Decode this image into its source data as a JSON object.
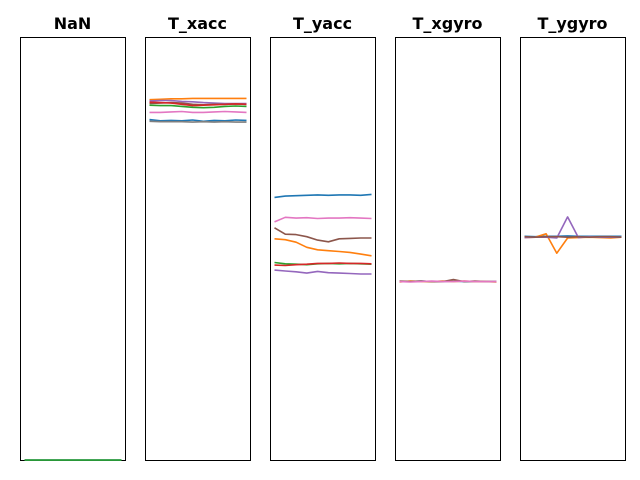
{
  "chart_data": {
    "type": "line",
    "subplots": [
      {
        "title": "NaN",
        "ylim": [
          0,
          100
        ],
        "series": [
          {
            "color": "#1f77b4",
            "values": [
              0.1,
              0.1,
              0.1,
              0.1,
              0.1,
              0.1,
              0.1,
              0.1,
              0.1,
              0.1
            ]
          },
          {
            "color": "#2ca02c",
            "values": [
              0.1,
              0.1,
              0.1,
              0.1,
              0.1,
              0.1,
              0.1,
              0.1,
              0.1,
              0.1
            ]
          }
        ]
      },
      {
        "title": "T_xacc",
        "ylim": [
          0,
          100
        ],
        "series": [
          {
            "color": "#ff7f0e",
            "values": [
              85.3,
              85.4,
              85.5,
              85.5,
              85.6,
              85.6,
              85.6,
              85.6,
              85.6,
              85.6
            ]
          },
          {
            "color": "#9467bd",
            "values": [
              85.0,
              85.1,
              85.1,
              84.9,
              84.8,
              84.6,
              84.5,
              84.4,
              84.4,
              84.4
            ]
          },
          {
            "color": "#8c564b",
            "values": [
              84.4,
              84.5,
              84.6,
              84.5,
              84.2,
              84.1,
              84.2,
              84.2,
              84.3,
              84.2
            ]
          },
          {
            "color": "#d62728",
            "values": [
              84.7,
              84.6,
              84.5,
              84.2,
              83.9,
              84.0,
              84.1,
              84.2,
              84.3,
              84.2
            ]
          },
          {
            "color": "#2ca02c",
            "values": [
              84.0,
              83.9,
              83.9,
              83.7,
              83.5,
              83.4,
              83.5,
              83.7,
              83.8,
              83.7
            ]
          },
          {
            "color": "#e377c2",
            "values": [
              82.3,
              82.3,
              82.4,
              82.5,
              82.3,
              82.3,
              82.4,
              82.5,
              82.4,
              82.3
            ]
          },
          {
            "color": "#1f77b4",
            "values": [
              80.6,
              80.3,
              80.4,
              80.3,
              80.5,
              80.2,
              80.4,
              80.3,
              80.5,
              80.4
            ]
          },
          {
            "color": "#7f7f7f",
            "values": [
              80.2,
              80.1,
              80.1,
              80.1,
              80.0,
              80.1,
              80.0,
              80.1,
              80.0,
              80.0
            ]
          }
        ]
      },
      {
        "title": "T_yacc",
        "ylim": [
          0,
          100
        ],
        "series": [
          {
            "color": "#1f77b4",
            "values": [
              62.2,
              62.5,
              62.6,
              62.7,
              62.8,
              62.7,
              62.8,
              62.8,
              62.7,
              62.9
            ]
          },
          {
            "color": "#e377c2",
            "values": [
              56.4,
              57.5,
              57.3,
              57.4,
              57.2,
              57.3,
              57.3,
              57.4,
              57.3,
              57.2
            ]
          },
          {
            "color": "#8c564b",
            "values": [
              55.0,
              53.5,
              53.4,
              52.9,
              52.1,
              51.7,
              52.4,
              52.5,
              52.6,
              52.6
            ]
          },
          {
            "color": "#ff7f0e",
            "values": [
              52.4,
              52.2,
              51.6,
              50.4,
              49.8,
              49.6,
              49.4,
              49.2,
              48.8,
              48.4
            ]
          },
          {
            "color": "#2ca02c",
            "values": [
              46.8,
              46.5,
              46.4,
              46.3,
              46.5,
              46.6,
              46.5,
              46.6,
              46.5,
              46.4
            ]
          },
          {
            "color": "#d62728",
            "values": [
              46.2,
              46.1,
              46.3,
              46.4,
              46.6,
              46.6,
              46.7,
              46.6,
              46.6,
              46.5
            ]
          },
          {
            "color": "#9467bd",
            "values": [
              45.0,
              44.8,
              44.6,
              44.3,
              44.7,
              44.4,
              44.3,
              44.2,
              44.1,
              44.1
            ]
          }
        ]
      },
      {
        "title": "T_xgyro",
        "ylim": [
          0,
          100
        ],
        "series": [
          {
            "color": "#1f77b4",
            "values": [
              42.3,
              42.3,
              42.4,
              42.3,
              42.3,
              42.4,
              42.3,
              42.3,
              42.3,
              42.3
            ]
          },
          {
            "color": "#ff7f0e",
            "values": [
              42.2,
              42.4,
              42.3,
              42.3,
              42.4,
              42.3,
              42.4,
              42.3,
              42.3,
              42.2
            ]
          },
          {
            "color": "#8c564b",
            "values": [
              42.4,
              42.3,
              42.4,
              42.3,
              42.3,
              42.8,
              42.3,
              42.4,
              42.3,
              42.3
            ]
          },
          {
            "color": "#e377c2",
            "values": [
              42.3,
              42.2,
              42.3,
              42.4,
              42.3,
              42.3,
              42.4,
              42.3,
              42.3,
              42.3
            ]
          }
        ]
      },
      {
        "title": "T_ygyro",
        "ylim": [
          0,
          100
        ],
        "series": [
          {
            "color": "#1f77b4",
            "values": [
              53.0,
              52.9,
              53.0,
              53.0,
              53.1,
              53.0,
              53.0,
              53.0,
              53.0,
              53.0
            ]
          },
          {
            "color": "#ff7f0e",
            "values": [
              52.7,
              52.8,
              53.6,
              49.0,
              52.6,
              52.7,
              52.8,
              52.7,
              52.6,
              52.8
            ]
          },
          {
            "color": "#9467bd",
            "values": [
              52.7,
              52.8,
              52.8,
              52.6,
              57.6,
              52.7,
              52.9,
              52.8,
              52.8,
              52.8
            ]
          },
          {
            "color": "#8c564b",
            "values": [
              52.9,
              52.8,
              52.9,
              52.9,
              52.8,
              52.9,
              52.8,
              52.9,
              52.9,
              52.8
            ]
          }
        ]
      }
    ]
  }
}
